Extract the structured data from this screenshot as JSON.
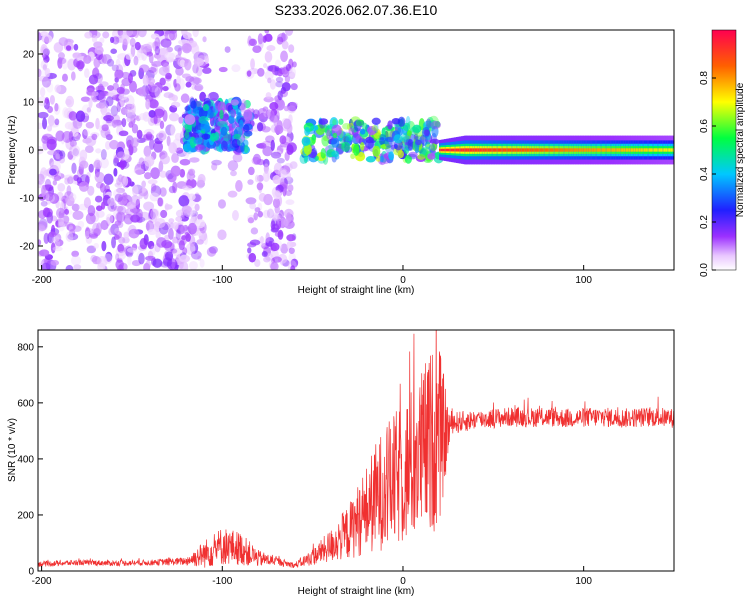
{
  "title": "S233.2026.062.07.36.E10",
  "chart_data": [
    {
      "type": "heatmap",
      "xlabel": "Height of straight line (km)",
      "ylabel": "Frequency (Hz)",
      "xlim": [
        -202,
        150
      ],
      "ylim": [
        -25,
        25
      ],
      "x_ticks": [
        -200,
        -100,
        0,
        100
      ],
      "y_ticks": [
        -20,
        -10,
        0,
        10,
        20
      ],
      "colorbar": {
        "label": "Normalized spectral amplitude",
        "range": [
          0,
          1
        ],
        "ticks": [
          0.0,
          0.2,
          0.4,
          0.6,
          0.8
        ]
      },
      "features": [
        {
          "x_range": [
            -202,
            -60
          ],
          "y_range": [
            -25,
            25
          ],
          "amplitude": 0.1,
          "pattern": "scattered noise"
        },
        {
          "x_range": [
            -120,
            -85
          ],
          "y_range": [
            0,
            10
          ],
          "amplitude": 0.3,
          "pattern": "blobs"
        },
        {
          "x_range": [
            -55,
            20
          ],
          "y_range": [
            -2,
            6
          ],
          "amplitude": 0.4,
          "pattern": "blobs"
        },
        {
          "x_range": [
            20,
            150
          ],
          "y_range": [
            -1,
            1
          ],
          "amplitude": 0.95,
          "pattern": "narrow line at 0 Hz"
        }
      ]
    },
    {
      "type": "line",
      "xlabel": "Height of straight line (km)",
      "ylabel": "SNR (10 * v/v)",
      "xlim": [
        -202,
        150
      ],
      "ylim": [
        0,
        860
      ],
      "x_ticks": [
        -200,
        -100,
        0,
        100
      ],
      "y_ticks": [
        0,
        200,
        400,
        600,
        800
      ],
      "series": [
        {
          "color": "#f03030",
          "x": [
            -202,
            -180,
            -160,
            -140,
            -120,
            -110,
            -100,
            -90,
            -80,
            -70,
            -60,
            -50,
            -40,
            -30,
            -25,
            -20,
            -15,
            -10,
            -5,
            0,
            5,
            10,
            15,
            20,
            25,
            27,
            30,
            40,
            50,
            60,
            70,
            80,
            90,
            100,
            110,
            120,
            130,
            140,
            150
          ],
          "y": [
            25,
            30,
            28,
            30,
            35,
            60,
            90,
            80,
            45,
            35,
            20,
            50,
            90,
            140,
            180,
            220,
            260,
            300,
            320,
            350,
            380,
            420,
            460,
            480,
            500,
            530,
            530,
            540,
            545,
            550,
            548,
            550,
            545,
            548,
            550,
            545,
            548,
            550,
            545
          ],
          "noise_amplitude": [
            10,
            10,
            10,
            10,
            15,
            50,
            70,
            60,
            30,
            15,
            10,
            30,
            60,
            100,
            130,
            160,
            200,
            220,
            240,
            260,
            280,
            300,
            330,
            330,
            100,
            40,
            40,
            35,
            35,
            35,
            35,
            35,
            35,
            35,
            35,
            35,
            35,
            35,
            35
          ]
        }
      ]
    }
  ]
}
